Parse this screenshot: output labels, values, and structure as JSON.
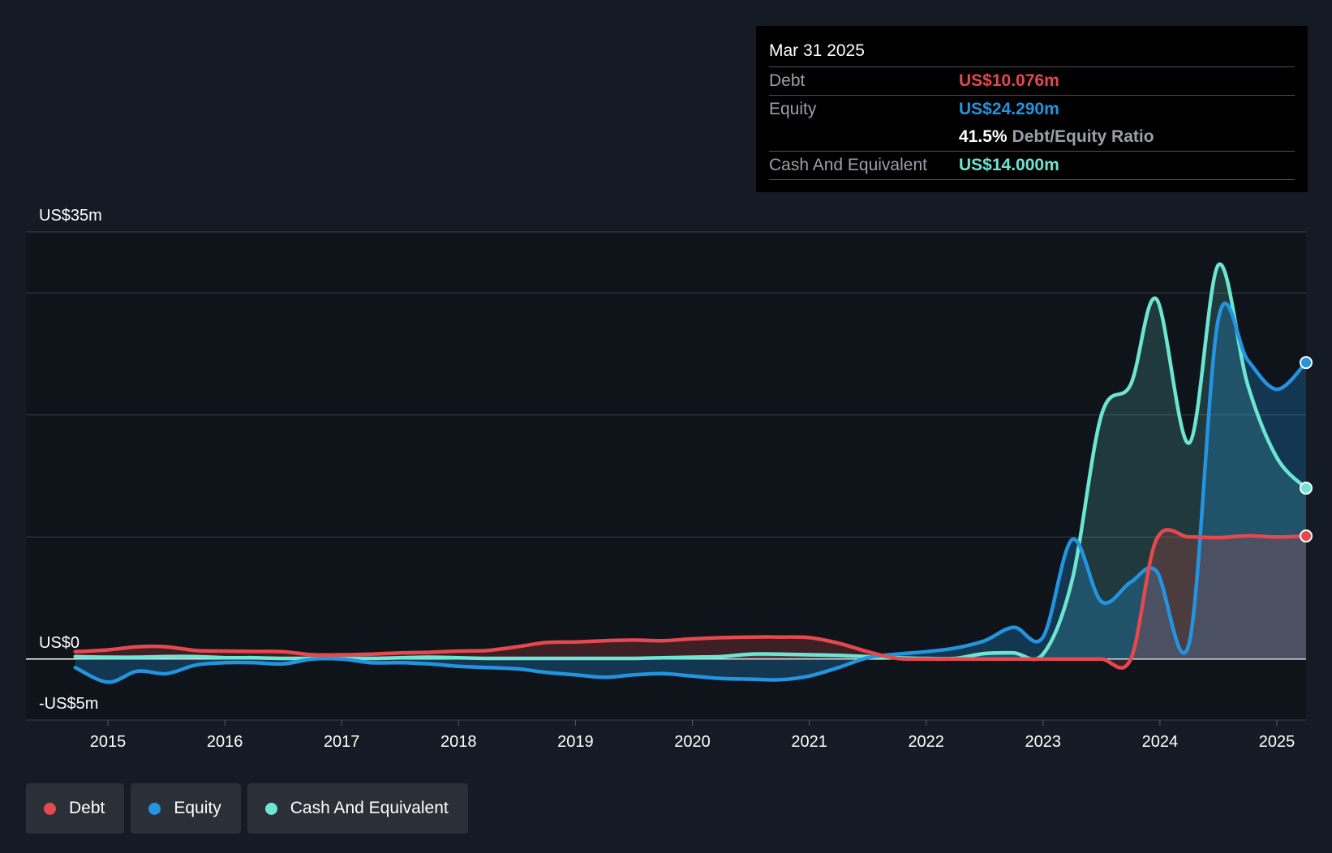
{
  "tooltip": {
    "date": "Mar 31 2025",
    "debt_label": "Debt",
    "debt_value": "US$10.076m",
    "equity_label": "Equity",
    "equity_value": "US$24.290m",
    "ratio_value": "41.5%",
    "ratio_label": "Debt/Equity Ratio",
    "cash_label": "Cash And Equivalent",
    "cash_value": "US$14.000m"
  },
  "legend": [
    {
      "label": "Debt",
      "color": "#e5484d"
    },
    {
      "label": "Equity",
      "color": "#2394df"
    },
    {
      "label": "Cash And Equivalent",
      "color": "#6ce5d2"
    }
  ],
  "colors": {
    "background": "#151b24",
    "plot_background": "#0f141b",
    "debt": "#e5484d",
    "equity": "#2394df",
    "cash": "#6ce5d2"
  },
  "chart_data": {
    "type": "area",
    "title": "",
    "xlabel": "",
    "ylabel": "",
    "ylim": [
      -5,
      35
    ],
    "xlim": [
      2014.67,
      2025.25
    ],
    "y_tick_labels": [
      {
        "value": 35,
        "label": "US$35m"
      },
      {
        "value": 0,
        "label": "US$0"
      },
      {
        "value": -5,
        "label": "-US$5m"
      }
    ],
    "gridlines": [
      35,
      30,
      20,
      10,
      0,
      -5
    ],
    "x_ticks": [
      2015,
      2016,
      2017,
      2018,
      2019,
      2020,
      2021,
      2022,
      2023,
      2024,
      2025
    ],
    "x_tick_labels": [
      "2015",
      "2016",
      "2017",
      "2018",
      "2019",
      "2020",
      "2021",
      "2022",
      "2023",
      "2024",
      "2025"
    ],
    "grid": true,
    "legend_position": "bottom-left",
    "series": [
      {
        "name": "Debt",
        "color": "#e5484d",
        "x": [
          2014.72,
          2015.0,
          2015.25,
          2015.5,
          2015.75,
          2016.0,
          2016.25,
          2016.5,
          2016.75,
          2017.0,
          2017.25,
          2017.5,
          2017.75,
          2018.0,
          2018.25,
          2018.5,
          2018.75,
          2019.0,
          2019.25,
          2019.5,
          2019.75,
          2020.0,
          2020.25,
          2020.5,
          2020.75,
          2021.0,
          2021.25,
          2021.5,
          2021.75,
          2022.0,
          2022.25,
          2022.5,
          2022.75,
          2023.0,
          2023.25,
          2023.5,
          2023.75,
          2023.97,
          2024.25,
          2024.5,
          2024.75,
          2025.0,
          2025.25
        ],
        "values": [
          0.6,
          0.75,
          1.0,
          1.0,
          0.7,
          0.65,
          0.62,
          0.6,
          0.35,
          0.35,
          0.4,
          0.5,
          0.55,
          0.65,
          0.7,
          1.0,
          1.35,
          1.4,
          1.5,
          1.55,
          1.5,
          1.65,
          1.75,
          1.8,
          1.8,
          1.75,
          1.3,
          0.6,
          0.05,
          0.0,
          0.0,
          0.0,
          0.0,
          0.0,
          0.0,
          0.0,
          0.0,
          9.8,
          10.0,
          9.95,
          10.1,
          10.0,
          10.08
        ]
      },
      {
        "name": "Equity",
        "color": "#2394df",
        "x": [
          2014.72,
          2015.0,
          2015.25,
          2015.5,
          2015.75,
          2016.0,
          2016.25,
          2016.5,
          2016.75,
          2017.0,
          2017.25,
          2017.5,
          2017.75,
          2018.0,
          2018.25,
          2018.5,
          2018.75,
          2019.0,
          2019.25,
          2019.5,
          2019.75,
          2020.0,
          2020.25,
          2020.5,
          2020.75,
          2021.0,
          2021.25,
          2021.5,
          2021.75,
          2022.0,
          2022.25,
          2022.5,
          2022.75,
          2023.0,
          2023.25,
          2023.5,
          2023.75,
          2023.97,
          2024.25,
          2024.5,
          2024.75,
          2025.0,
          2025.25
        ],
        "values": [
          -0.7,
          -1.9,
          -1.0,
          -1.2,
          -0.5,
          -0.3,
          -0.3,
          -0.4,
          0.0,
          0.0,
          -0.3,
          -0.3,
          -0.4,
          -0.6,
          -0.7,
          -0.8,
          -1.1,
          -1.3,
          -1.5,
          -1.3,
          -1.2,
          -1.4,
          -1.6,
          -1.65,
          -1.7,
          -1.4,
          -0.7,
          0.1,
          0.4,
          0.6,
          0.9,
          1.5,
          2.6,
          1.8,
          9.8,
          4.7,
          6.3,
          7.2,
          1.3,
          27.9,
          24.5,
          22.1,
          24.29
        ]
      },
      {
        "name": "Cash And Equivalent",
        "color": "#6ce5d2",
        "x": [
          2014.72,
          2015.0,
          2015.25,
          2015.5,
          2015.75,
          2016.0,
          2016.25,
          2016.5,
          2016.75,
          2017.0,
          2017.25,
          2017.5,
          2017.75,
          2018.0,
          2018.25,
          2018.5,
          2018.75,
          2019.0,
          2019.25,
          2019.5,
          2019.75,
          2020.0,
          2020.25,
          2020.5,
          2020.75,
          2021.0,
          2021.25,
          2021.5,
          2021.75,
          2022.0,
          2022.25,
          2022.5,
          2022.75,
          2023.0,
          2023.25,
          2023.5,
          2023.75,
          2023.97,
          2024.25,
          2024.5,
          2024.75,
          2025.0,
          2025.25
        ],
        "values": [
          0.2,
          0.15,
          0.15,
          0.2,
          0.2,
          0.1,
          0.1,
          0.05,
          0.05,
          0.05,
          0.05,
          0.1,
          0.15,
          0.1,
          0.05,
          0.05,
          0.05,
          0.05,
          0.05,
          0.05,
          0.1,
          0.15,
          0.2,
          0.4,
          0.4,
          0.35,
          0.3,
          0.2,
          0.1,
          0.05,
          0.05,
          0.45,
          0.5,
          0.4,
          6.5,
          20.0,
          22.5,
          29.5,
          17.7,
          32.3,
          22.5,
          16.5,
          14.0
        ]
      }
    ]
  }
}
